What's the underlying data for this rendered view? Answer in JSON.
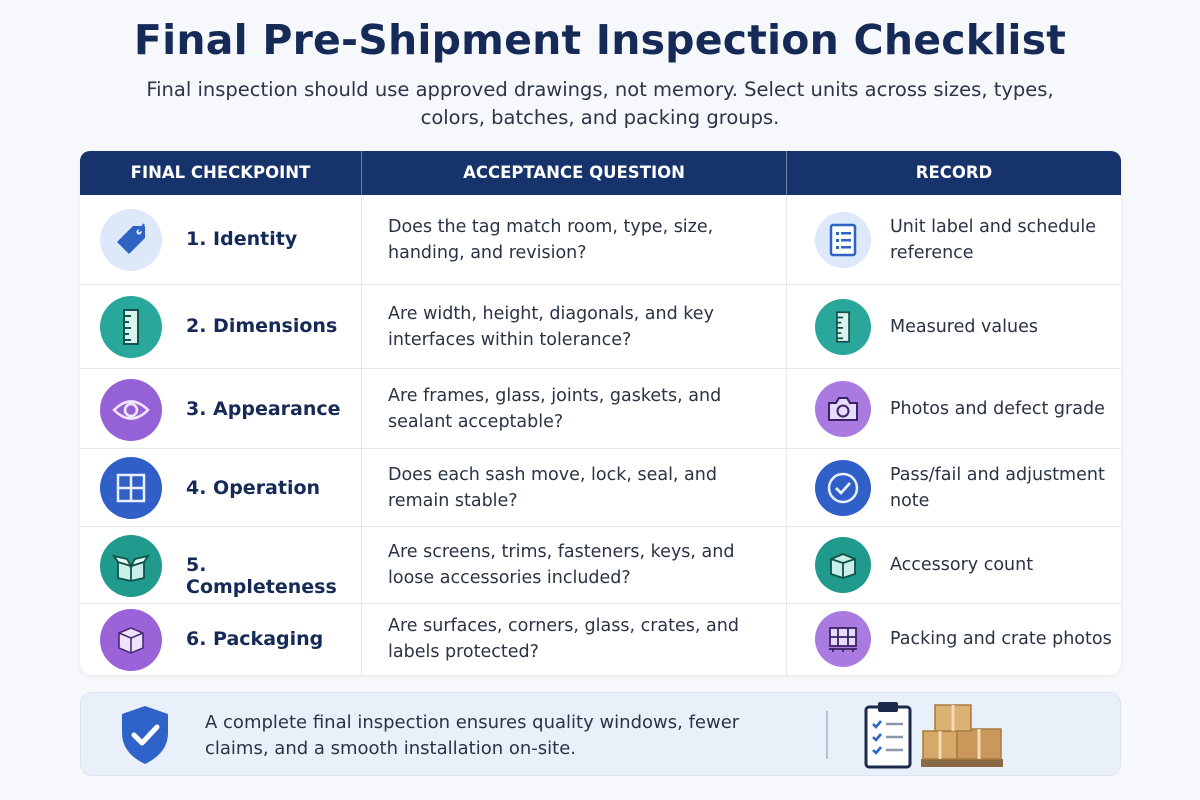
{
  "header": {
    "title": "Final Pre-Shipment Inspection Checklist",
    "subtitle": "Final inspection should use approved drawings, not memory. Select units across sizes, types, colors, batches, and packing groups."
  },
  "table": {
    "columns": [
      "FINAL CHECKPOINT",
      "ACCEPTANCE QUESTION",
      "RECORD"
    ],
    "rows": [
      {
        "checkpoint": "1. Identity",
        "question": "Does the tag match room, type, size, handing, and revision?",
        "record": "Unit label and schedule reference",
        "checkpoint_icon": "tag-icon",
        "record_icon": "document-list-icon",
        "color": "#2e63c4"
      },
      {
        "checkpoint": "2. Dimensions",
        "question": "Are width, height, diagonals, and key interfaces within tolerance?",
        "record": "Measured values",
        "checkpoint_icon": "ruler-icon",
        "record_icon": "ruler-icon",
        "color": "#2aa79b"
      },
      {
        "checkpoint": "3. Appearance",
        "question": "Are frames, glass, joints, gaskets, and sealant acceptable?",
        "record": "Photos and defect grade",
        "checkpoint_icon": "eye-icon",
        "record_icon": "camera-icon",
        "color": "#9561d6"
      },
      {
        "checkpoint": "4. Operation",
        "question": "Does each sash move, lock, seal, and remain stable?",
        "record": "Pass/fail and adjustment note",
        "checkpoint_icon": "window-icon",
        "record_icon": "check-circle-icon",
        "color": "#2f5fc7"
      },
      {
        "checkpoint": "5. Completeness",
        "question": "Are screens, trims, fasteners, keys, and loose accessories included?",
        "record": "Accessory count",
        "checkpoint_icon": "open-box-icon",
        "record_icon": "box-icon",
        "color": "#1f9a8c"
      },
      {
        "checkpoint": "6. Packaging",
        "question": "Are surfaces, corners, glass, crates, and labels protected?",
        "record": "Packing and crate photos",
        "checkpoint_icon": "package-icon",
        "record_icon": "crate-icon",
        "color": "#9b63d8"
      }
    ]
  },
  "footer": {
    "text": "A complete final inspection ensures quality windows, fewer claims, and a smooth installation on-site.",
    "shield_icon": "shield-check-icon",
    "clipboard_icon": "clipboard-checklist-icon",
    "boxes_icon": "stacked-boxes-icon"
  }
}
